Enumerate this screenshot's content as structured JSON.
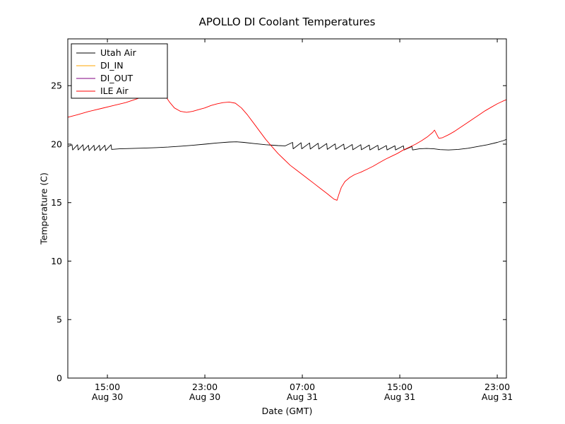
{
  "chart_data": {
    "type": "line",
    "title": "APOLLO DI Coolant Temperatures",
    "xlabel": "Date (GMT)",
    "ylabel": "Temperature (C)",
    "x_unit": "hours since Aug 30 00:00 GMT",
    "xlim": [
      11.75,
      47.75
    ],
    "ylim": [
      0,
      29
    ],
    "grid": false,
    "yticks": [
      0,
      5,
      10,
      15,
      20,
      25
    ],
    "xticks": [
      {
        "value": 15,
        "line1": "15:00",
        "line2": "Aug 30"
      },
      {
        "value": 23,
        "line1": "23:00",
        "line2": "Aug 30"
      },
      {
        "value": 31,
        "line1": "07:00",
        "line2": "Aug 31"
      },
      {
        "value": 39,
        "line1": "15:00",
        "line2": "Aug 31"
      },
      {
        "value": 47,
        "line1": "23:00",
        "line2": "Aug 31"
      }
    ],
    "legend": {
      "position": "upper left",
      "entries": [
        "Utah Air",
        "DI_IN",
        "DI_OUT",
        "ILE Air"
      ]
    },
    "series": [
      {
        "name": "Utah Air",
        "color": "#000000",
        "points": [
          [
            11.75,
            19.8
          ],
          [
            12.1,
            19.95
          ],
          [
            12.15,
            19.5
          ],
          [
            12.55,
            19.95
          ],
          [
            12.6,
            19.5
          ],
          [
            13.0,
            19.95
          ],
          [
            13.05,
            19.45
          ],
          [
            13.45,
            19.9
          ],
          [
            13.5,
            19.45
          ],
          [
            13.9,
            19.9
          ],
          [
            13.95,
            19.45
          ],
          [
            14.35,
            19.9
          ],
          [
            14.4,
            19.45
          ],
          [
            14.8,
            19.9
          ],
          [
            14.85,
            19.45
          ],
          [
            15.3,
            19.95
          ],
          [
            15.35,
            19.55
          ],
          [
            16.0,
            19.6
          ],
          [
            17.0,
            19.63
          ],
          [
            18.0,
            19.66
          ],
          [
            19.0,
            19.7
          ],
          [
            20.0,
            19.75
          ],
          [
            21.0,
            19.82
          ],
          [
            22.0,
            19.9
          ],
          [
            23.0,
            20.0
          ],
          [
            24.0,
            20.1
          ],
          [
            25.0,
            20.18
          ],
          [
            25.6,
            20.2
          ],
          [
            26.2,
            20.15
          ],
          [
            27.0,
            20.05
          ],
          [
            28.0,
            19.95
          ],
          [
            29.0,
            19.88
          ],
          [
            29.6,
            19.85
          ],
          [
            30.2,
            20.15
          ],
          [
            30.25,
            19.6
          ],
          [
            30.9,
            20.12
          ],
          [
            30.95,
            19.6
          ],
          [
            31.6,
            20.1
          ],
          [
            31.65,
            19.58
          ],
          [
            32.3,
            20.07
          ],
          [
            32.35,
            19.58
          ],
          [
            33.0,
            20.05
          ],
          [
            33.05,
            19.55
          ],
          [
            33.7,
            20.02
          ],
          [
            33.75,
            19.55
          ],
          [
            34.4,
            20.0
          ],
          [
            34.45,
            19.55
          ],
          [
            35.1,
            19.97
          ],
          [
            35.15,
            19.52
          ],
          [
            35.8,
            19.95
          ],
          [
            35.85,
            19.52
          ],
          [
            36.5,
            19.92
          ],
          [
            36.55,
            19.5
          ],
          [
            37.2,
            19.9
          ],
          [
            37.25,
            19.5
          ],
          [
            37.9,
            19.88
          ],
          [
            37.95,
            19.5
          ],
          [
            38.6,
            19.86
          ],
          [
            38.65,
            19.5
          ],
          [
            39.3,
            19.85
          ],
          [
            39.35,
            19.5
          ],
          [
            40.0,
            19.8
          ],
          [
            40.05,
            19.5
          ],
          [
            40.6,
            19.6
          ],
          [
            41.2,
            19.63
          ],
          [
            41.8,
            19.6
          ],
          [
            42.3,
            19.53
          ],
          [
            43.0,
            19.5
          ],
          [
            43.8,
            19.55
          ],
          [
            44.6,
            19.65
          ],
          [
            45.4,
            19.8
          ],
          [
            46.2,
            19.95
          ],
          [
            47.0,
            20.15
          ],
          [
            47.5,
            20.3
          ],
          [
            47.75,
            20.4
          ]
        ]
      },
      {
        "name": "DI_IN",
        "color": "#ffa500",
        "points": []
      },
      {
        "name": "DI_OUT",
        "color": "#800080",
        "points": []
      },
      {
        "name": "ILE Air",
        "color": "#ff0000",
        "points": [
          [
            11.75,
            22.3
          ],
          [
            12.5,
            22.5
          ],
          [
            13.5,
            22.8
          ],
          [
            14.5,
            23.05
          ],
          [
            15.5,
            23.3
          ],
          [
            16.5,
            23.55
          ],
          [
            17.5,
            23.9
          ],
          [
            18.3,
            24.2
          ],
          [
            18.9,
            24.42
          ],
          [
            19.3,
            24.5
          ],
          [
            19.7,
            24.2
          ],
          [
            20.1,
            23.6
          ],
          [
            20.5,
            23.1
          ],
          [
            21.0,
            22.8
          ],
          [
            21.5,
            22.72
          ],
          [
            22.0,
            22.8
          ],
          [
            22.5,
            22.95
          ],
          [
            23.0,
            23.1
          ],
          [
            23.5,
            23.3
          ],
          [
            24.0,
            23.45
          ],
          [
            24.5,
            23.55
          ],
          [
            25.0,
            23.6
          ],
          [
            25.5,
            23.5
          ],
          [
            26.0,
            23.1
          ],
          [
            26.5,
            22.5
          ],
          [
            27.0,
            21.8
          ],
          [
            27.5,
            21.1
          ],
          [
            28.0,
            20.4
          ],
          [
            28.5,
            19.8
          ],
          [
            29.0,
            19.2
          ],
          [
            29.5,
            18.7
          ],
          [
            30.0,
            18.2
          ],
          [
            30.5,
            17.8
          ],
          [
            31.0,
            17.4
          ],
          [
            31.5,
            17.0
          ],
          [
            32.0,
            16.6
          ],
          [
            32.5,
            16.2
          ],
          [
            33.0,
            15.8
          ],
          [
            33.3,
            15.55
          ],
          [
            33.6,
            15.3
          ],
          [
            33.85,
            15.2
          ],
          [
            34.0,
            15.7
          ],
          [
            34.2,
            16.3
          ],
          [
            34.5,
            16.8
          ],
          [
            34.9,
            17.15
          ],
          [
            35.3,
            17.4
          ],
          [
            35.8,
            17.6
          ],
          [
            36.3,
            17.85
          ],
          [
            36.8,
            18.1
          ],
          [
            37.3,
            18.4
          ],
          [
            37.8,
            18.7
          ],
          [
            38.3,
            18.95
          ],
          [
            38.8,
            19.2
          ],
          [
            39.3,
            19.5
          ],
          [
            39.8,
            19.75
          ],
          [
            40.3,
            20.0
          ],
          [
            40.8,
            20.3
          ],
          [
            41.3,
            20.65
          ],
          [
            41.7,
            21.0
          ],
          [
            41.85,
            21.2
          ],
          [
            42.0,
            20.9
          ],
          [
            42.2,
            20.5
          ],
          [
            42.5,
            20.55
          ],
          [
            43.0,
            20.8
          ],
          [
            43.5,
            21.1
          ],
          [
            44.0,
            21.45
          ],
          [
            44.5,
            21.8
          ],
          [
            45.0,
            22.15
          ],
          [
            45.5,
            22.5
          ],
          [
            46.0,
            22.85
          ],
          [
            46.5,
            23.15
          ],
          [
            47.0,
            23.45
          ],
          [
            47.4,
            23.65
          ],
          [
            47.75,
            23.8
          ]
        ]
      }
    ]
  }
}
